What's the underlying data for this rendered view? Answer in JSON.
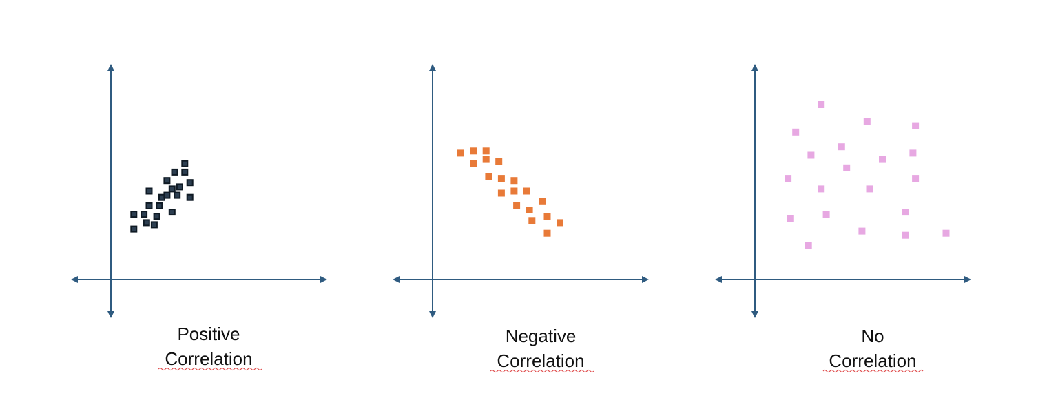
{
  "colors": {
    "axis": "#2f5b80",
    "positive_marker_fill": "#2c3e50",
    "positive_marker_stroke": "#0f1a24",
    "negative_marker": "#e87a38",
    "none_marker": "#e7a8e2",
    "spellcheck": "#e05050"
  },
  "chart_data": [
    {
      "type": "scatter",
      "caption": [
        "Positive",
        "Correlation"
      ],
      "title": "",
      "xlabel": "",
      "ylabel": "",
      "grid": false,
      "xlim": [
        0,
        100
      ],
      "ylim": [
        0,
        100
      ],
      "points": [
        [
          9,
          24
        ],
        [
          9,
          31
        ],
        [
          13,
          31
        ],
        [
          14,
          27
        ],
        [
          15,
          35
        ],
        [
          15,
          42
        ],
        [
          17,
          26
        ],
        [
          18,
          30
        ],
        [
          19,
          35
        ],
        [
          20,
          39
        ],
        [
          22,
          40
        ],
        [
          22,
          47
        ],
        [
          24,
          32
        ],
        [
          24,
          43
        ],
        [
          25,
          51
        ],
        [
          26,
          40
        ],
        [
          27,
          44
        ],
        [
          29,
          51
        ],
        [
          29,
          55
        ],
        [
          31,
          46
        ],
        [
          31,
          39
        ]
      ]
    },
    {
      "type": "scatter",
      "caption": [
        "Negative",
        "Correlation"
      ],
      "title": "",
      "xlabel": "",
      "ylabel": "",
      "grid": false,
      "xlim": [
        0,
        100
      ],
      "ylim": [
        0,
        100
      ],
      "points": [
        [
          11,
          60
        ],
        [
          16,
          61
        ],
        [
          21,
          61
        ],
        [
          16,
          55
        ],
        [
          21,
          57
        ],
        [
          26,
          56
        ],
        [
          22,
          49
        ],
        [
          27,
          48
        ],
        [
          32,
          47
        ],
        [
          27,
          41
        ],
        [
          32,
          42
        ],
        [
          37,
          42
        ],
        [
          33,
          35
        ],
        [
          38,
          33
        ],
        [
          43,
          37
        ],
        [
          39,
          28
        ],
        [
          45,
          30
        ],
        [
          50,
          27
        ],
        [
          45,
          22
        ]
      ]
    },
    {
      "type": "scatter",
      "caption": [
        "No",
        "Correlation"
      ],
      "title": "",
      "xlabel": "",
      "ylabel": "",
      "grid": false,
      "xlim": [
        0,
        100
      ],
      "ylim": [
        0,
        100
      ],
      "points": [
        [
          26,
          83
        ],
        [
          44,
          75
        ],
        [
          63,
          73
        ],
        [
          16,
          70
        ],
        [
          34,
          63
        ],
        [
          22,
          59
        ],
        [
          50,
          57
        ],
        [
          62,
          60
        ],
        [
          36,
          53
        ],
        [
          13,
          48
        ],
        [
          26,
          43
        ],
        [
          45,
          43
        ],
        [
          63,
          48
        ],
        [
          14,
          29
        ],
        [
          28,
          31
        ],
        [
          59,
          32
        ],
        [
          42,
          23
        ],
        [
          59,
          21
        ],
        [
          75,
          22
        ],
        [
          21,
          16
        ]
      ]
    }
  ]
}
